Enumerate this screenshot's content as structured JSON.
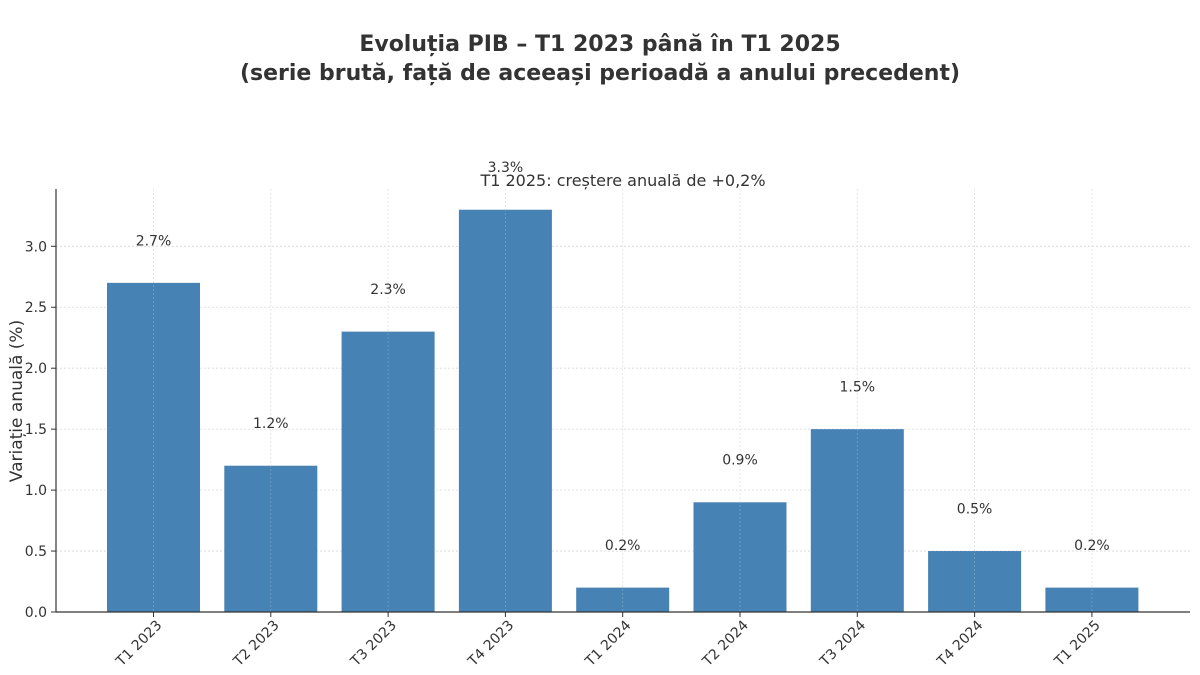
{
  "chart_data": {
    "type": "bar",
    "title_lines": [
      "Evoluția PIB – T1 2023 până în T1 2025",
      "(serie brută, față de aceeași perioadă a anului precedent)"
    ],
    "subtitle": "T1 2025: creștere anuală de +0,2%",
    "xlabel": "",
    "ylabel": "Variație anuală (%)",
    "categories": [
      "T1 2023",
      "T2 2023",
      "T3 2023",
      "T4 2023",
      "T1 2024",
      "T2 2024",
      "T3 2024",
      "T4 2024",
      "T1 2025"
    ],
    "values": [
      2.7,
      1.2,
      2.3,
      3.3,
      0.2,
      0.9,
      1.5,
      0.5,
      0.2
    ],
    "data_labels": [
      "2.7%",
      "1.2%",
      "2.3%",
      "3.3%",
      "0.2%",
      "0.9%",
      "1.5%",
      "0.5%",
      "0.2%"
    ],
    "yticks": [
      "0.0",
      "0.5",
      "1.0",
      "1.5",
      "2.0",
      "2.5",
      "3.0"
    ],
    "ylim": [
      0,
      3.47
    ],
    "grid": true,
    "bar_color": "#4682b4"
  }
}
